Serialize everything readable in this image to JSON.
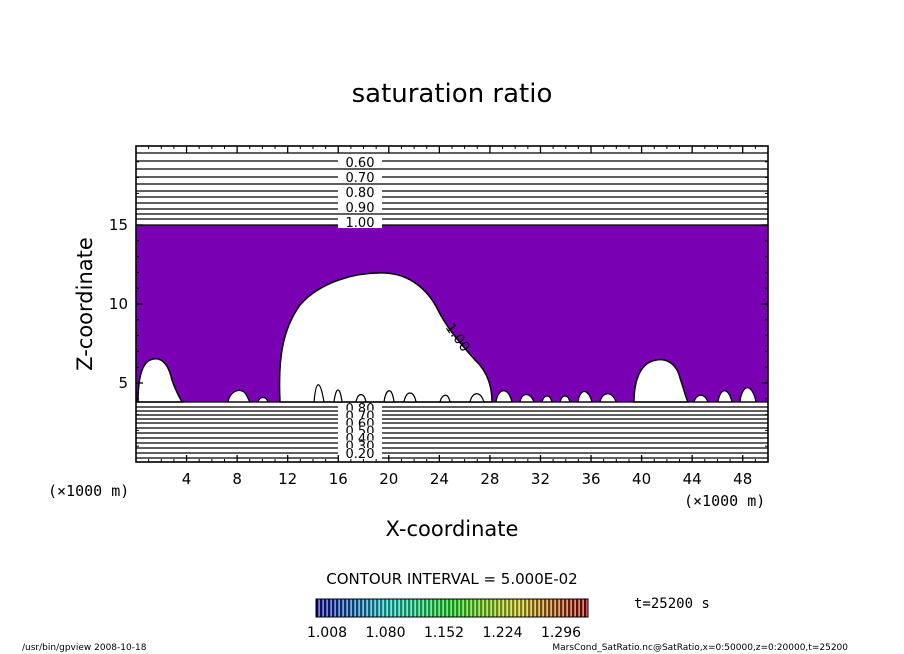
{
  "chart_data": {
    "type": "contour",
    "title": "saturation ratio",
    "xlabel": "X-coordinate",
    "ylabel": "Z-coordinate",
    "x_units": "(×1000 m)",
    "y_units": "(×1000 m)",
    "xlim": [
      0,
      50
    ],
    "ylim": [
      0,
      20
    ],
    "x_ticks": [
      "4",
      "8",
      "12",
      "16",
      "20",
      "24",
      "28",
      "32",
      "36",
      "40",
      "44",
      "48"
    ],
    "y_ticks": [
      "5",
      "10",
      "15"
    ],
    "fill_color": "#7a00b4",
    "fill_threshold": 1.0,
    "upper_contour_labels": [
      "0.60",
      "0.70",
      "0.80",
      "0.90",
      "1.00"
    ],
    "lower_contour_labels": [
      "0.80",
      "0.70",
      "0.60",
      "0.50",
      "0.40",
      "0.30",
      "0.20"
    ],
    "cloud_contour_label": "1.00",
    "contour_interval_text": "CONTOUR INTERVAL = 5.000E-02",
    "colorbar_ticks": [
      "1.008",
      "1.080",
      "1.152",
      "1.224",
      "1.296"
    ],
    "time_label": "t=25200 s",
    "footer_left": "/usr/bin/gpview   2008-10-18",
    "footer_right": "MarsCond_SatRatio.nc@SatRatio,x=0:50000,z=0:20000,t=25200"
  }
}
